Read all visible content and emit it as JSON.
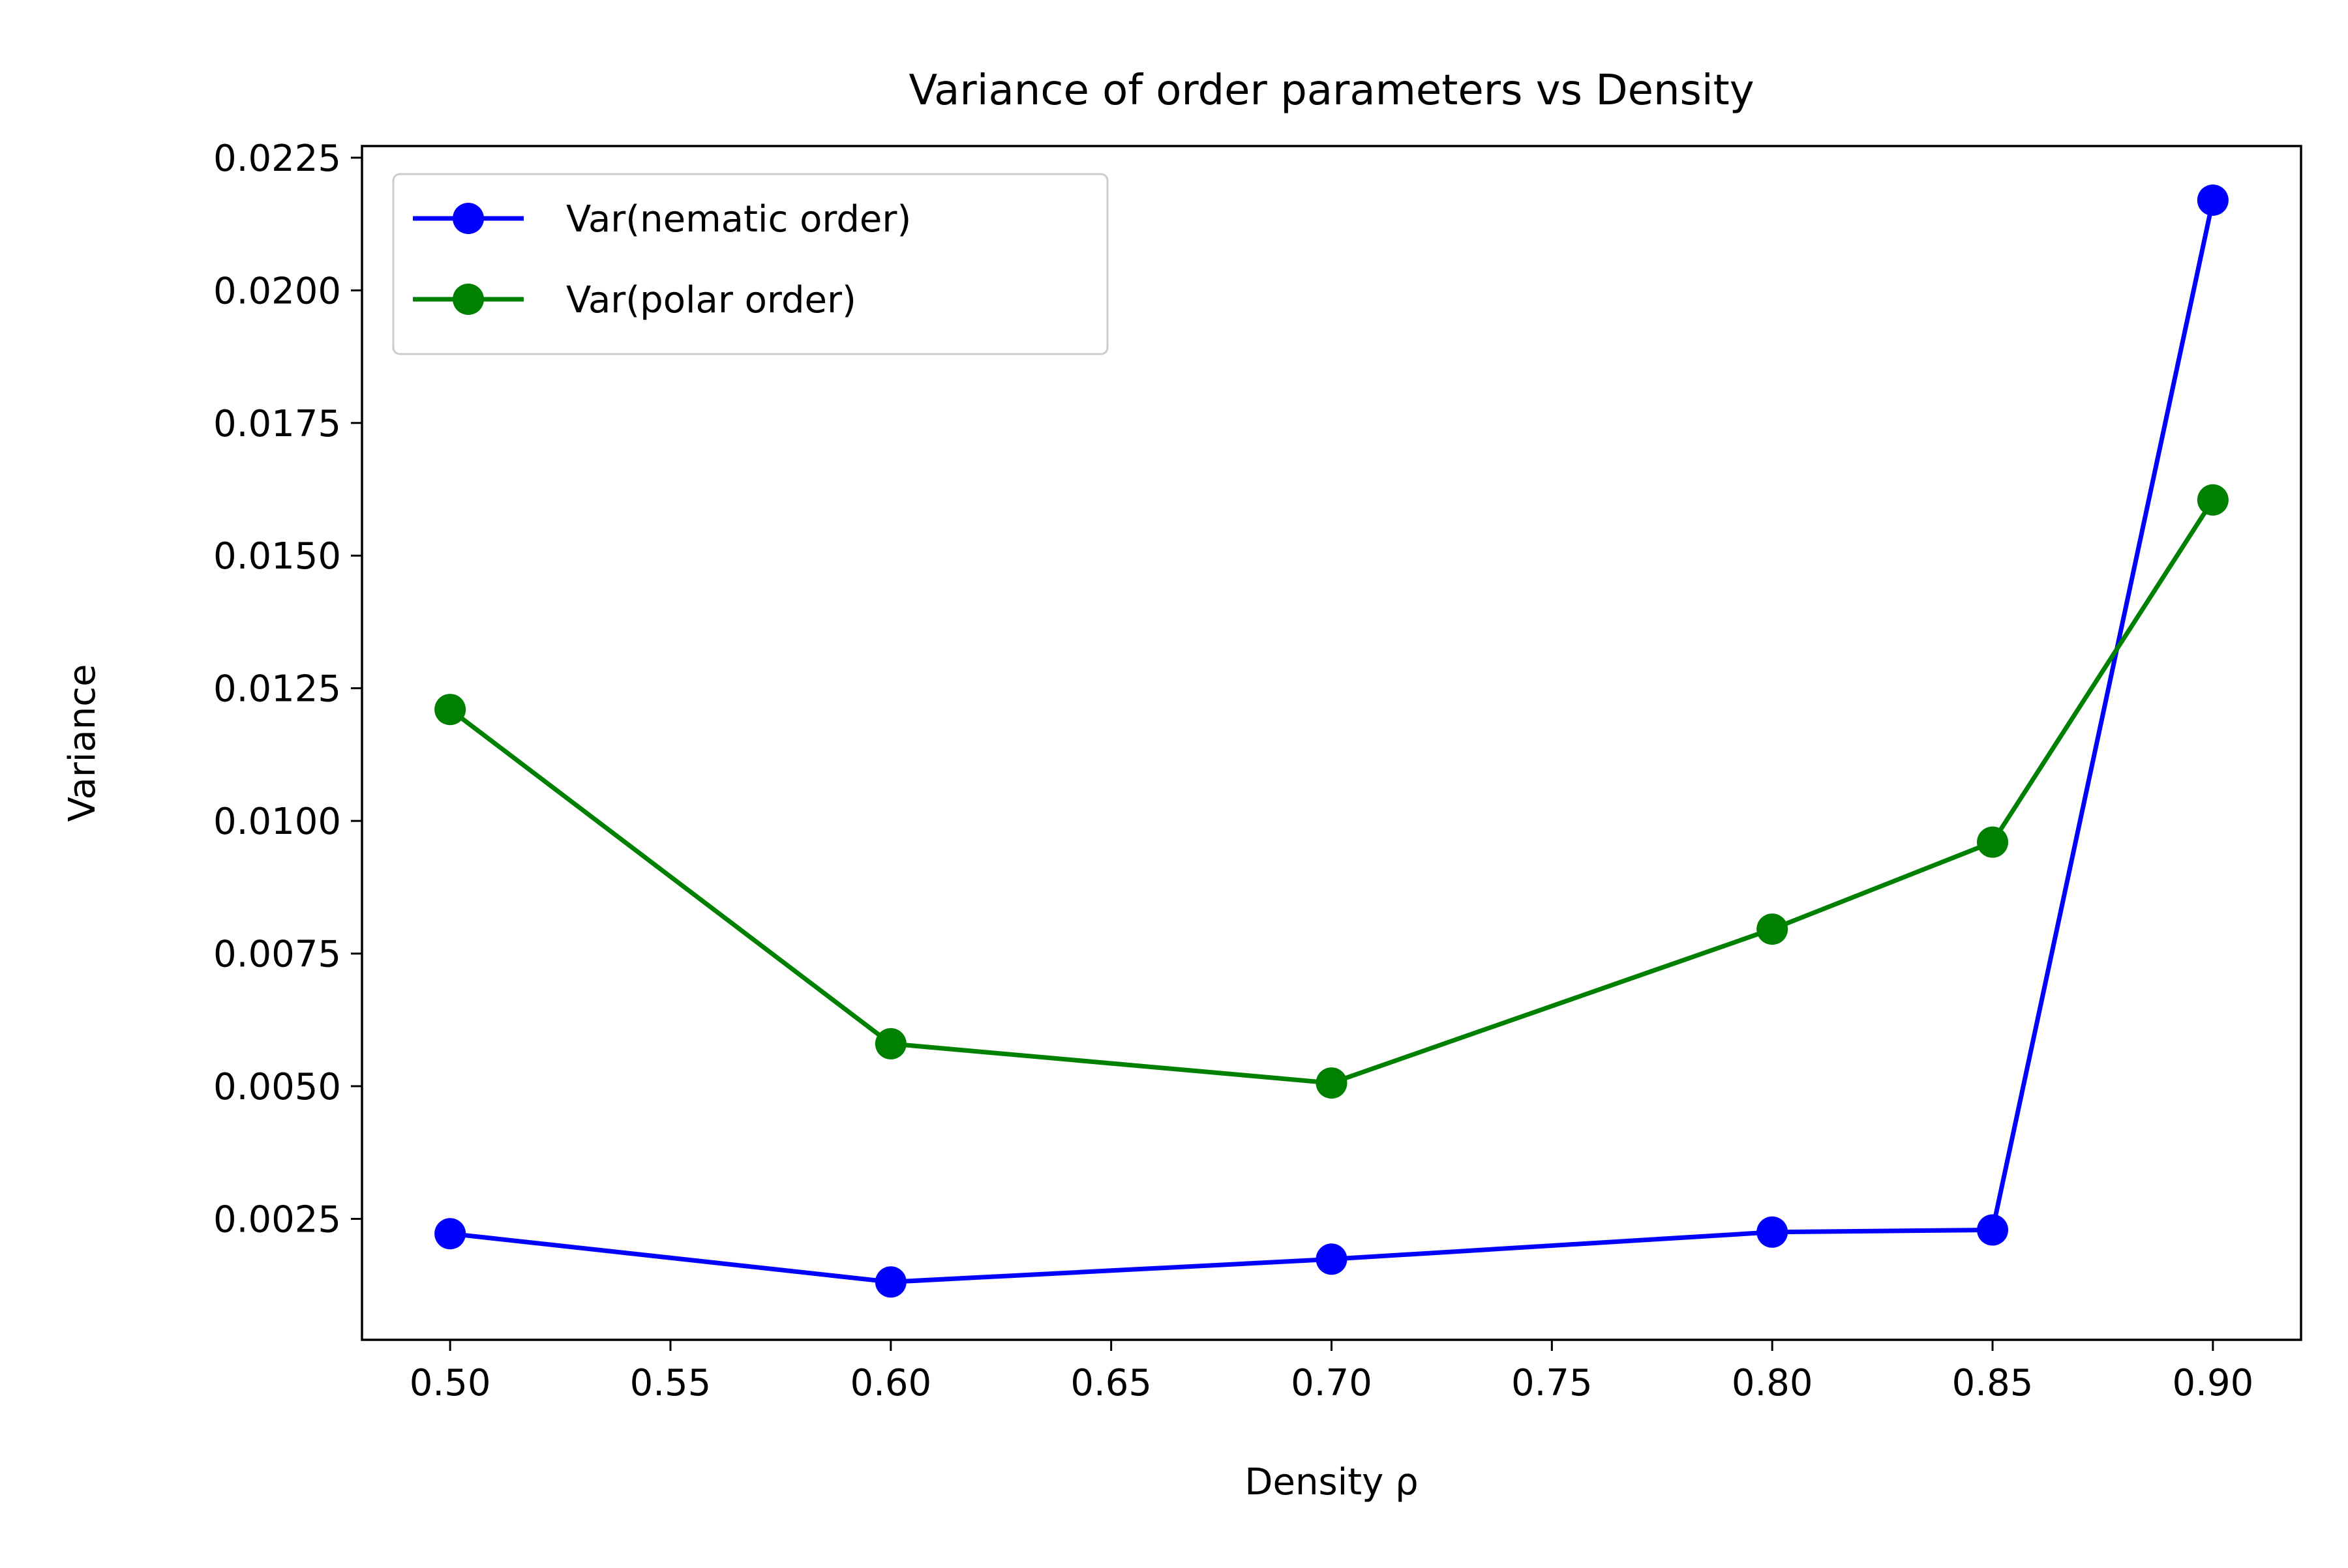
{
  "chart_data": {
    "type": "line",
    "title": "Variance of order parameters vs Density",
    "xlabel": "Density ρ",
    "ylabel": "Variance",
    "xlim": [
      0.48,
      0.92
    ],
    "ylim": [
      0.00022,
      0.02272
    ],
    "xticks": [
      0.5,
      0.55,
      0.6,
      0.65,
      0.7,
      0.75,
      0.8,
      0.85,
      0.9
    ],
    "xtick_labels": [
      "0.50",
      "0.55",
      "0.60",
      "0.65",
      "0.70",
      "0.75",
      "0.80",
      "0.85",
      "0.90"
    ],
    "yticks": [
      0.0025,
      0.005,
      0.0075,
      0.01,
      0.0125,
      0.015,
      0.0175,
      0.02,
      0.0225
    ],
    "ytick_labels": [
      "0.0025",
      "0.0050",
      "0.0075",
      "0.0100",
      "0.0125",
      "0.0150",
      "0.0175",
      "0.0200",
      "0.0225"
    ],
    "grid": false,
    "legend_position": "top-left",
    "x": [
      0.5,
      0.6,
      0.7,
      0.8,
      0.85,
      0.9
    ],
    "series": [
      {
        "name": "Var(nematic order)",
        "color": "#0000ff",
        "marker": "circle",
        "values": [
          0.00222,
          0.00131,
          0.00174,
          0.00225,
          0.00229,
          0.0217
        ]
      },
      {
        "name": "Var(polar order)",
        "color": "#008000",
        "marker": "circle",
        "values": [
          0.0121,
          0.0058,
          0.00506,
          0.00796,
          0.0096,
          0.01605
        ]
      }
    ]
  }
}
